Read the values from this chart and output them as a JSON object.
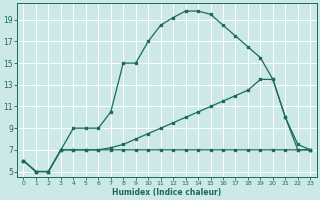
{
  "xlabel": "Humidex (Indice chaleur)",
  "bg_color": "#cce8e8",
  "line_color": "#1a6b5a",
  "grid_color": "#ffffff",
  "xlim": [
    -0.5,
    23.5
  ],
  "ylim": [
    4.5,
    20.5
  ],
  "xticks": [
    0,
    1,
    2,
    3,
    4,
    5,
    6,
    7,
    8,
    9,
    10,
    11,
    12,
    13,
    14,
    15,
    16,
    17,
    18,
    19,
    20,
    21,
    22,
    23
  ],
  "yticks": [
    5,
    7,
    9,
    11,
    13,
    15,
    17,
    19
  ],
  "curve1_x": [
    0,
    1,
    2,
    3,
    4,
    5,
    6,
    7,
    8,
    9,
    10,
    11,
    12,
    13,
    14,
    15,
    16,
    17,
    18,
    19,
    20,
    21,
    22,
    23
  ],
  "curve1_y": [
    6,
    5,
    5,
    7,
    9,
    9,
    9,
    10.5,
    15,
    15,
    17,
    18.5,
    19.2,
    19.8,
    19.8,
    19.5,
    18.5,
    17.5,
    16.5,
    15.5,
    13.5,
    10,
    7,
    7
  ],
  "curve2_x": [
    0,
    1,
    2,
    3,
    4,
    5,
    6,
    7,
    8,
    9,
    10,
    11,
    12,
    13,
    14,
    15,
    16,
    17,
    18,
    19,
    20,
    21,
    22,
    23
  ],
  "curve2_y": [
    6,
    5,
    5,
    7,
    7,
    7,
    7,
    7.2,
    7.5,
    8,
    8.5,
    9,
    9.5,
    10,
    10.5,
    11,
    11.5,
    12,
    12.5,
    13.5,
    13.5,
    10,
    7.5,
    7
  ],
  "curve3_x": [
    0,
    1,
    2,
    3,
    4,
    5,
    6,
    7,
    8,
    9,
    10,
    11,
    12,
    13,
    14,
    15,
    16,
    17,
    18,
    19,
    20,
    21,
    22,
    23
  ],
  "curve3_y": [
    6,
    5,
    5,
    7,
    7,
    7,
    7,
    7,
    7,
    7,
    7,
    7,
    7,
    7,
    7,
    7,
    7,
    7,
    7,
    7,
    7,
    7,
    7,
    7
  ]
}
